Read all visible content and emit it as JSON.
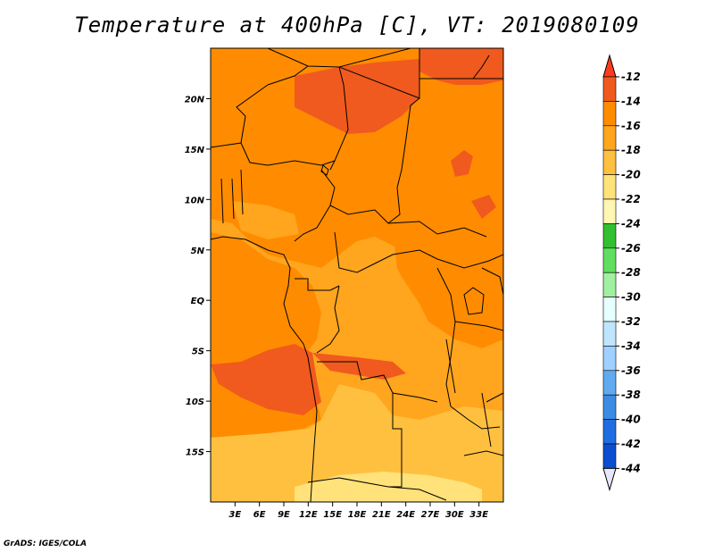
{
  "title": "Temperature at 400hPa [C], VT: 2019080109",
  "credit": "GrADS: IGES/COLA",
  "map": {
    "lon_range": [
      0,
      36
    ],
    "lat_range": [
      -20,
      25
    ],
    "lat_ticks": [
      {
        "value": 20,
        "label": "20N"
      },
      {
        "value": 15,
        "label": "15N"
      },
      {
        "value": 10,
        "label": "10N"
      },
      {
        "value": 5,
        "label": "5N"
      },
      {
        "value": 0,
        "label": "EQ"
      },
      {
        "value": -5,
        "label": "5S"
      },
      {
        "value": -10,
        "label": "10S"
      },
      {
        "value": -15,
        "label": "15S"
      }
    ],
    "lon_ticks": [
      {
        "value": 3,
        "label": "3E"
      },
      {
        "value": 6,
        "label": "6E"
      },
      {
        "value": 9,
        "label": "9E"
      },
      {
        "value": 12,
        "label": "12E"
      },
      {
        "value": 15,
        "label": "15E"
      },
      {
        "value": 18,
        "label": "18E"
      },
      {
        "value": 21,
        "label": "21E"
      },
      {
        "value": 24,
        "label": "24E"
      },
      {
        "value": 27,
        "label": "27E"
      },
      {
        "value": 30,
        "label": "30E"
      },
      {
        "value": 33,
        "label": "33E"
      }
    ]
  },
  "colorbar": {
    "levels": [
      "-12",
      "-14",
      "-16",
      "-18",
      "-20",
      "-22",
      "-24",
      "-26",
      "-28",
      "-30",
      "-32",
      "-34",
      "-36",
      "-38",
      "-40",
      "-42",
      "-44"
    ],
    "colors": [
      "#f05a1e",
      "#ff8c00",
      "#ffa51e",
      "#ffc040",
      "#ffe27a",
      "#fff6b4",
      "#30c030",
      "#60de60",
      "#a0f0a0",
      "#e6ffff",
      "#bfe6ff",
      "#a0d0ff",
      "#60aaf0",
      "#3c8ce6",
      "#1e6ee1",
      "#0b4fd0",
      "#0a1ea0"
    ],
    "top_arrow_color": "#ff3c1e",
    "bottom_arrow_color": "#e6e6ff"
  }
}
